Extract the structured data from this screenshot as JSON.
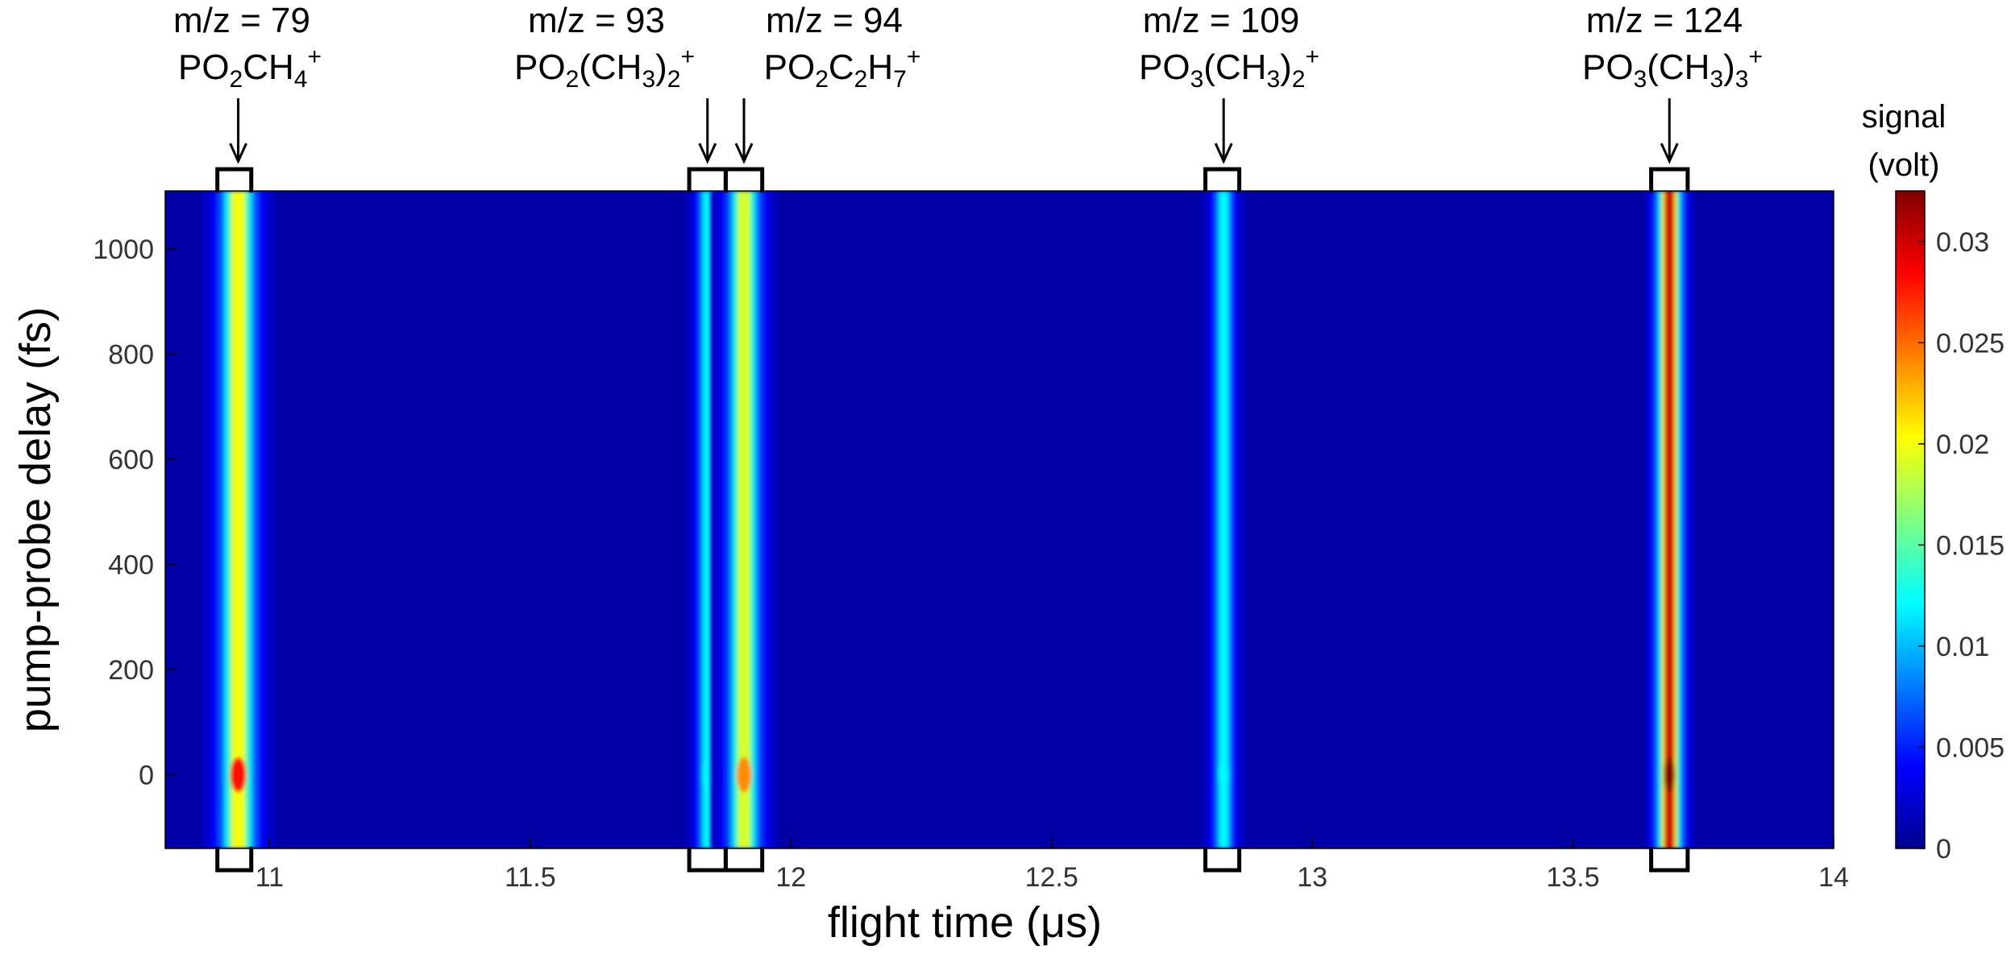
{
  "chart_data": {
    "type": "heatmap",
    "xlabel": "flight time (μs)",
    "ylabel": "pump-probe delay (fs)",
    "xlim": [
      10.8,
      14.0
    ],
    "ylim": [
      -140,
      1110
    ],
    "x_ticks": [
      {
        "value": 11,
        "label": "11"
      },
      {
        "value": 11.5,
        "label": "11.5"
      },
      {
        "value": 12,
        "label": "12"
      },
      {
        "value": 12.5,
        "label": "12.5"
      },
      {
        "value": 13,
        "label": "13"
      },
      {
        "value": 13.5,
        "label": "13.5"
      },
      {
        "value": 14,
        "label": "14"
      }
    ],
    "y_ticks": [
      {
        "value": 0,
        "label": "0"
      },
      {
        "value": 200,
        "label": "200"
      },
      {
        "value": 400,
        "label": "400"
      },
      {
        "value": 600,
        "label": "600"
      },
      {
        "value": 800,
        "label": "800"
      },
      {
        "value": 1000,
        "label": "1000"
      }
    ],
    "colorbar": {
      "title": "signal",
      "title_line2": "(volt)",
      "range": [
        0,
        0.0325
      ],
      "colormap": "jet",
      "ticks": [
        {
          "value": 0,
          "label": "0"
        },
        {
          "value": 0.005,
          "label": "0.005"
        },
        {
          "value": 0.01,
          "label": "0.01"
        },
        {
          "value": 0.015,
          "label": "0.015"
        },
        {
          "value": 0.02,
          "label": "0.02"
        },
        {
          "value": 0.025,
          "label": "0.025"
        },
        {
          "value": 0.03,
          "label": "0.03"
        }
      ]
    },
    "background_signal": 0.0012,
    "peaks": [
      {
        "mz_label": "m/z = 79",
        "formula": [
          [
            "PO",
            "n"
          ],
          [
            "2",
            "sub"
          ],
          [
            "CH",
            "n"
          ],
          [
            "4",
            "sub"
          ],
          [
            "+",
            "sup"
          ]
        ],
        "flight_time": 10.94,
        "width": 0.022,
        "signal": 0.02,
        "t0_signal": 0.028,
        "bracket": [
          10.9,
          10.965
        ]
      },
      {
        "mz_label": "m/z = 93",
        "formula": [
          [
            "PO",
            "n"
          ],
          [
            "2",
            "sub"
          ],
          [
            "(CH",
            "n"
          ],
          [
            "3",
            "sub"
          ],
          [
            ")",
            "n"
          ],
          [
            "2",
            "sub"
          ],
          [
            "+",
            "sup"
          ]
        ],
        "flight_time": 11.84,
        "width": 0.014,
        "signal": 0.012,
        "t0_signal": 0.012,
        "bracket": [
          11.805,
          11.875
        ]
      },
      {
        "mz_label": "m/z = 94",
        "formula": [
          [
            "PO",
            "n"
          ],
          [
            "2",
            "sub"
          ],
          [
            "C",
            "n"
          ],
          [
            "2",
            "sub"
          ],
          [
            "H",
            "n"
          ],
          [
            "7",
            "sub"
          ],
          [
            "+",
            "sup"
          ]
        ],
        "flight_time": 11.91,
        "width": 0.02,
        "signal": 0.019,
        "t0_signal": 0.024,
        "bracket": [
          11.875,
          11.945
        ]
      },
      {
        "mz_label": "m/z = 109",
        "formula": [
          [
            "PO",
            "n"
          ],
          [
            "3",
            "sub"
          ],
          [
            "(CH",
            "n"
          ],
          [
            "3",
            "sub"
          ],
          [
            ")",
            "n"
          ],
          [
            "2",
            "sub"
          ],
          [
            "+",
            "sup"
          ]
        ],
        "flight_time": 12.83,
        "width": 0.014,
        "signal": 0.012,
        "t0_signal": 0.012,
        "bracket": [
          12.795,
          12.86
        ]
      },
      {
        "mz_label": "m/z = 124",
        "formula": [
          [
            "PO",
            "n"
          ],
          [
            "3",
            "sub"
          ],
          [
            "(CH",
            "n"
          ],
          [
            "3",
            "sub"
          ],
          [
            ")",
            "n"
          ],
          [
            "3",
            "sub"
          ],
          [
            "+",
            "sup"
          ]
        ],
        "flight_time": 13.685,
        "width": 0.014,
        "signal": 0.03,
        "t0_signal": 0.0325,
        "bracket": [
          13.65,
          13.72
        ]
      }
    ]
  }
}
